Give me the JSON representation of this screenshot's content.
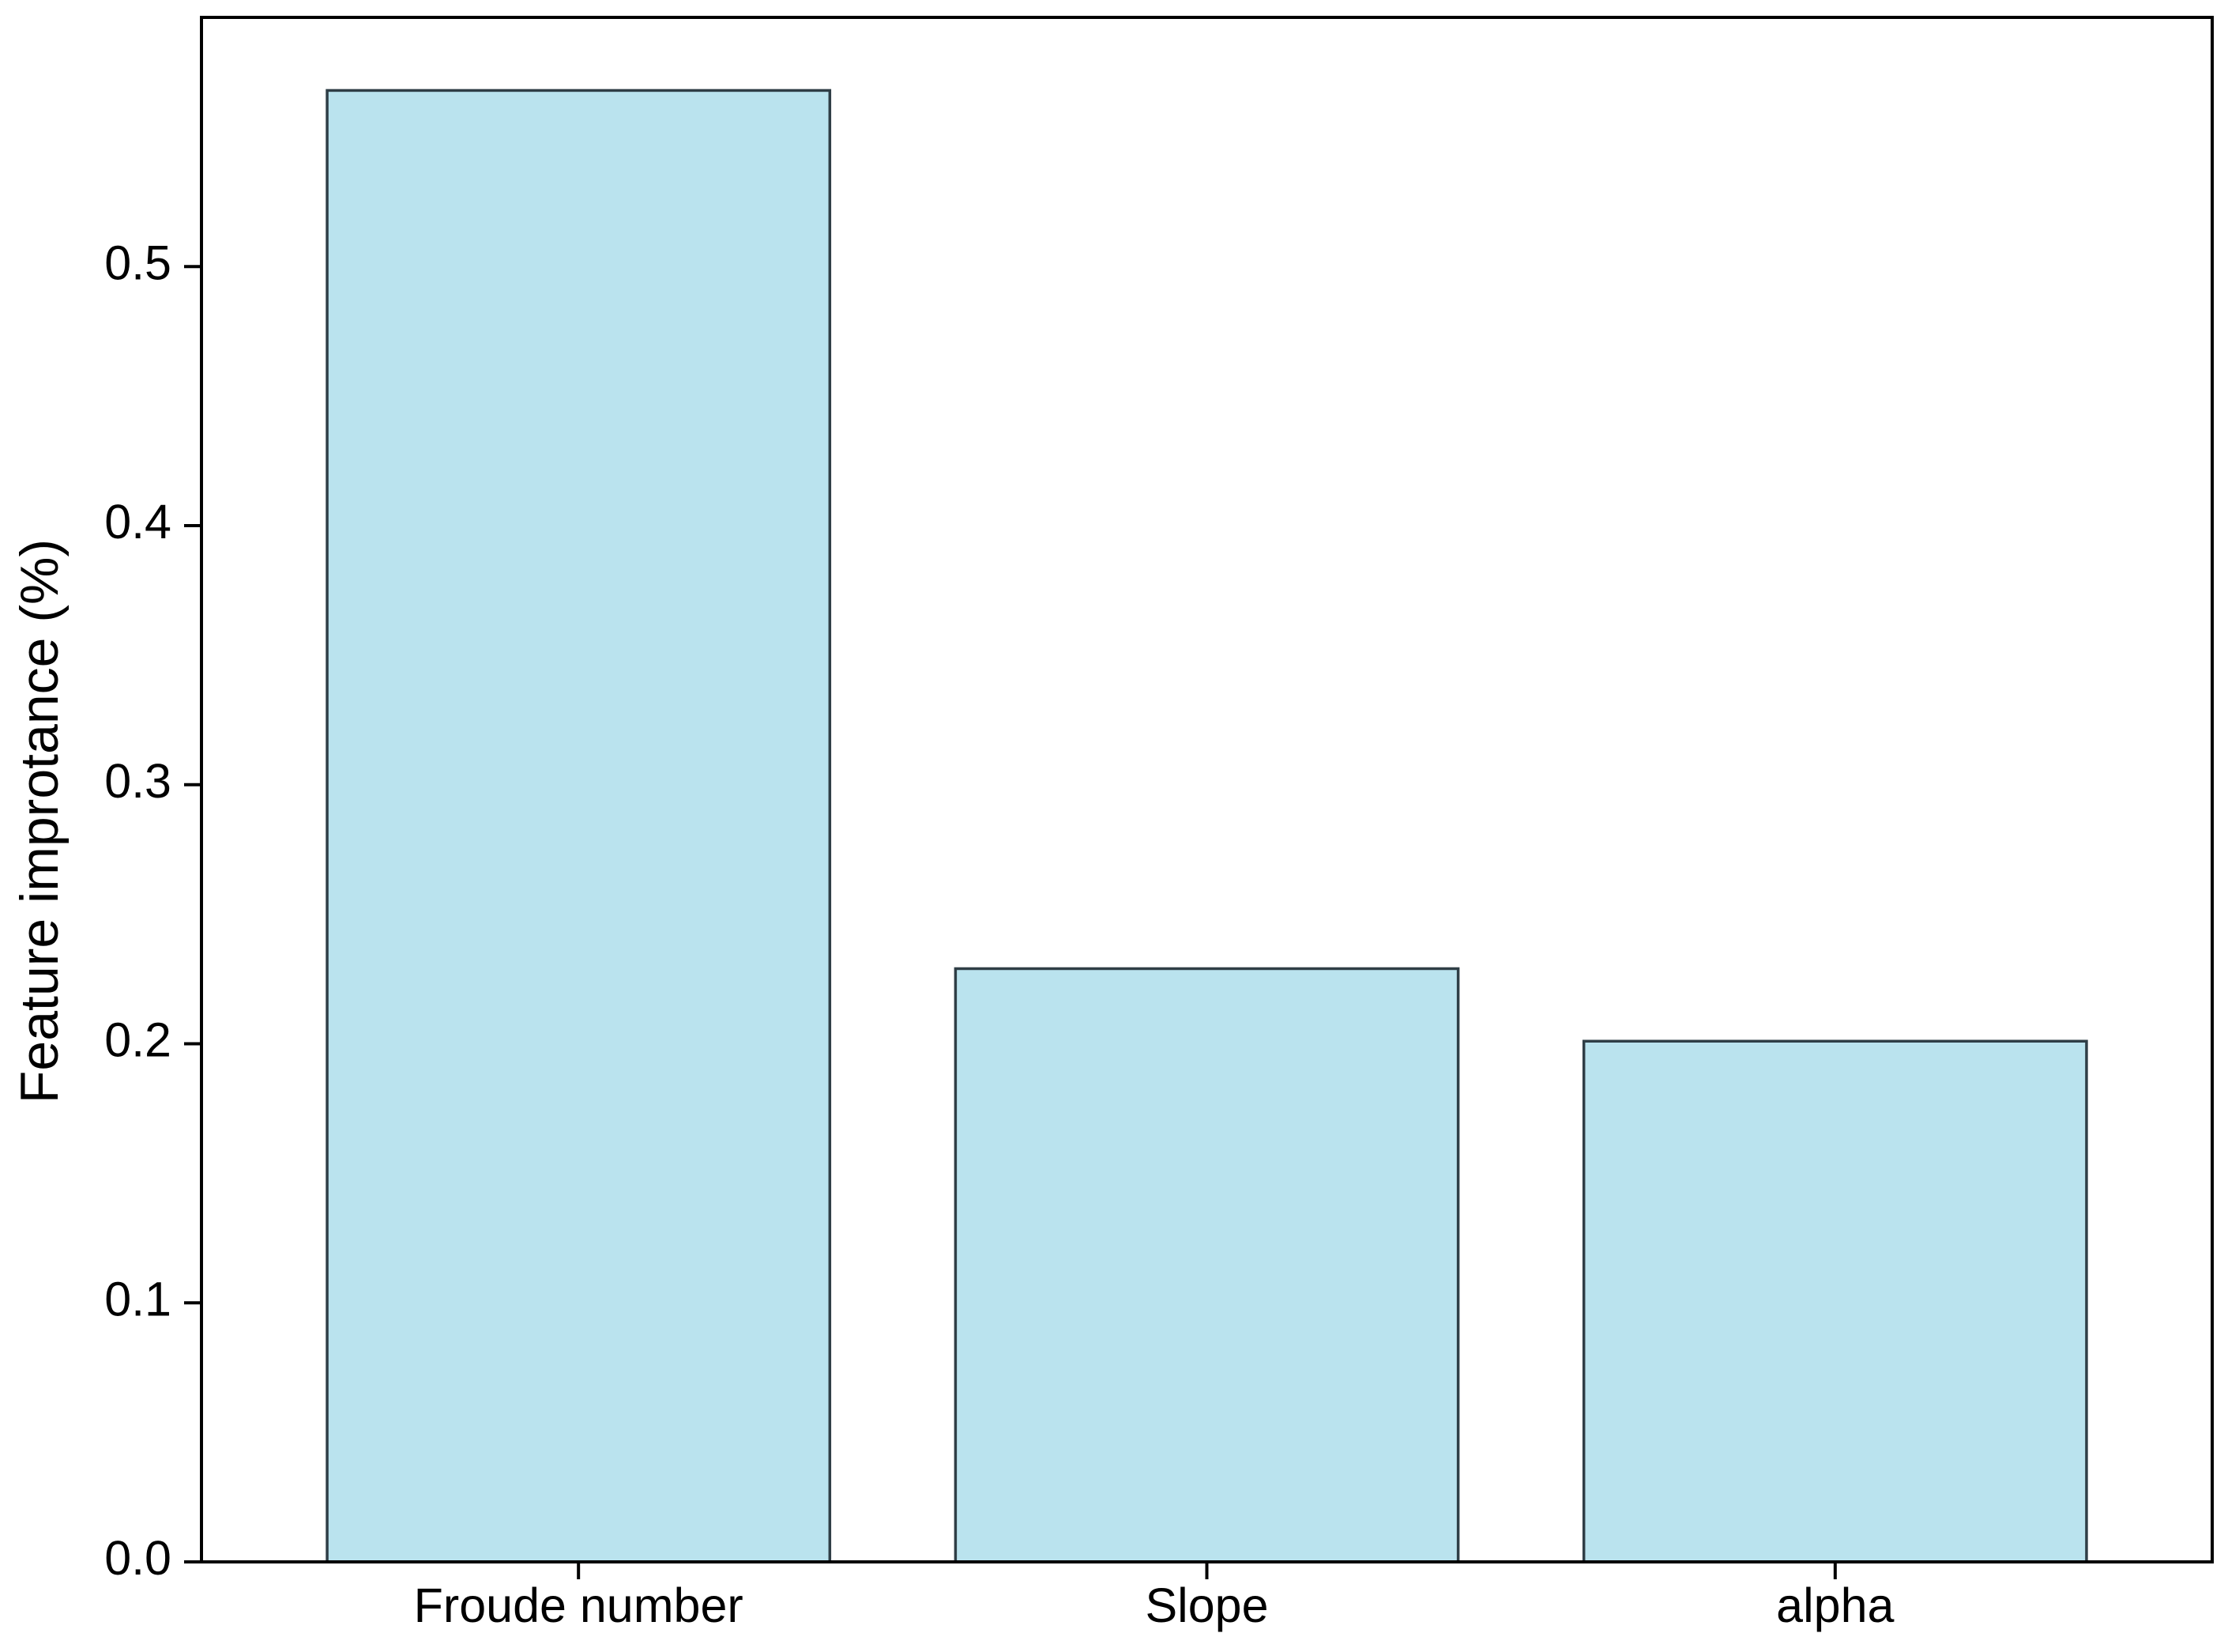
{
  "chart_data": {
    "type": "bar",
    "title": "",
    "xlabel": "",
    "ylabel": "Feature improtance (%)",
    "categories": [
      "Froude number",
      "Slope",
      "alpha"
    ],
    "values": [
      0.568,
      0.229,
      0.201
    ],
    "ylim": [
      0,
      0.6
    ],
    "yticks": [
      0.0,
      0.1,
      0.2,
      0.3,
      0.4,
      0.5
    ],
    "ytick_labels": [
      "0.0",
      "0.1",
      "0.2",
      "0.3",
      "0.4",
      "0.5"
    ],
    "grid": false,
    "legend": "none",
    "colors": {
      "bar_fill": "#bae3ee",
      "bar_edge": "#2f3e46",
      "axis": "#000000"
    }
  }
}
